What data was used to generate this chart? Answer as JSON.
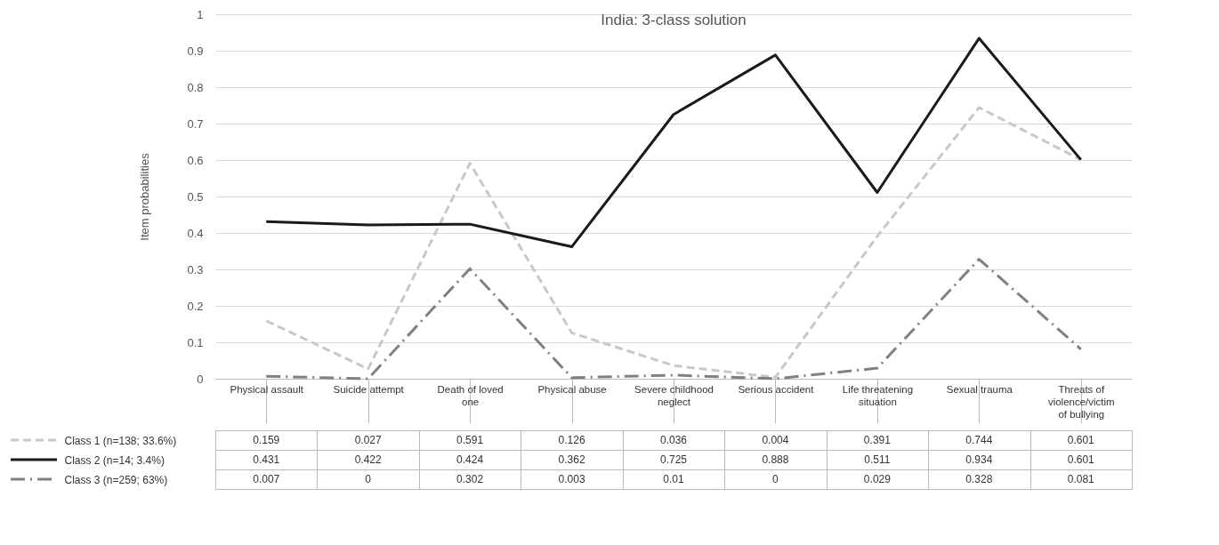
{
  "chart_data": {
    "type": "line",
    "title": "India: 3-class solution",
    "ylabel": "Item probabilities",
    "categories": [
      "Physical assault",
      "Suicide attempt",
      "Death of loved one",
      "Physical abuse",
      "Severe childhood neglect",
      "Serious accident",
      "Life threatening situation",
      "Sexual trauma",
      "Threats of violence/victim of bullying"
    ],
    "series": [
      {
        "name": "Class 1 (n=138; 33.6%)",
        "color": "#c8c8c8",
        "line_style": "dashed",
        "values": [
          0.159,
          0.027,
          0.591,
          0.126,
          0.036,
          0.004,
          0.391,
          0.744,
          0.601
        ]
      },
      {
        "name": "Class 2 (n=14; 3.4%)",
        "color": "#1a1a1a",
        "line_style": "solid",
        "values": [
          0.431,
          0.422,
          0.424,
          0.362,
          0.725,
          0.888,
          0.511,
          0.934,
          0.601
        ]
      },
      {
        "name": "Class 3 (n=259; 63%)",
        "color": "#808080",
        "line_style": "dashdot",
        "values": [
          0.007,
          0,
          0.302,
          0.003,
          0.01,
          0,
          0.029,
          0.328,
          0.081
        ]
      }
    ],
    "ylim": [
      0,
      1
    ],
    "yticks": [
      0,
      0.1,
      0.2,
      0.3,
      0.4,
      0.5,
      0.6,
      0.7,
      0.8,
      0.9,
      1
    ],
    "grid": "y",
    "data_labels": true,
    "legend": "bottom left",
    "marker": "none"
  }
}
